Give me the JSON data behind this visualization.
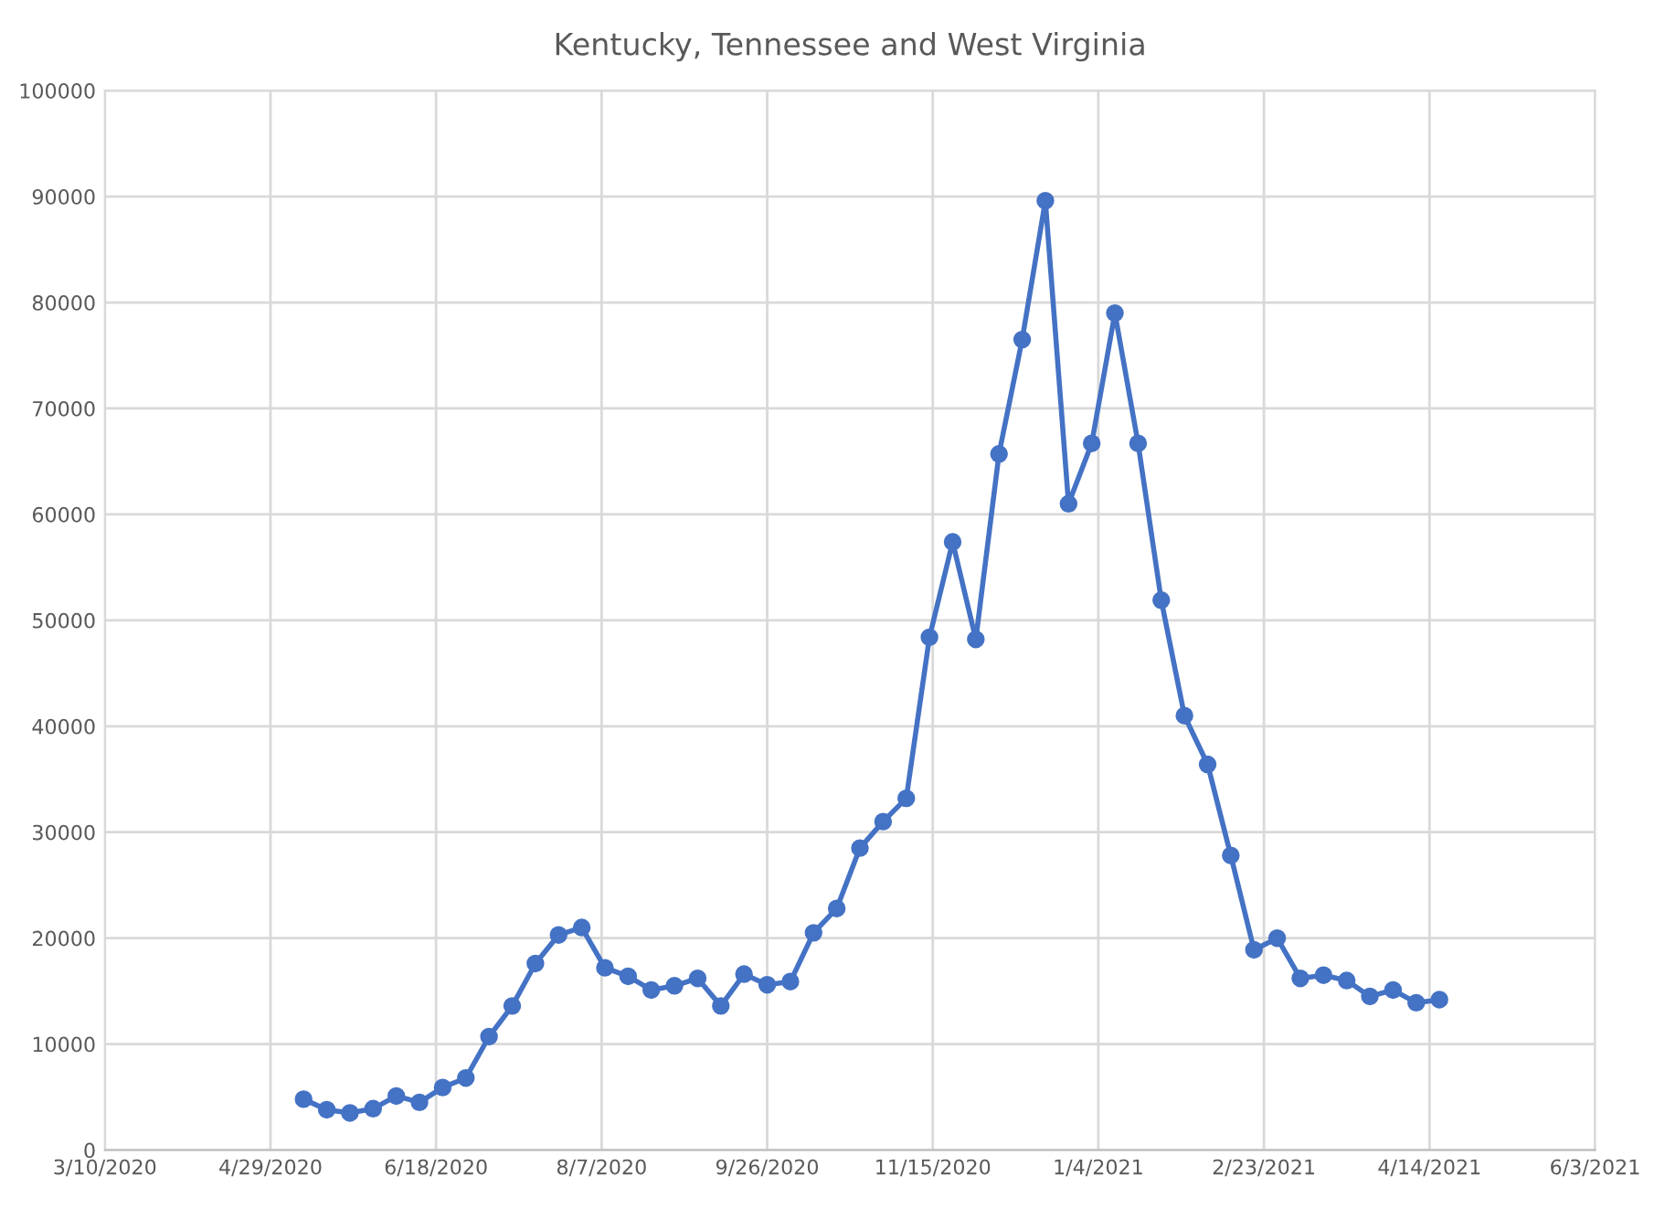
{
  "chart_data": {
    "type": "line",
    "title": "Kentucky, Tennessee and West Virginia",
    "x": [
      "2020-05-09",
      "2020-05-16",
      "2020-05-23",
      "2020-05-30",
      "2020-06-06",
      "2020-06-13",
      "2020-06-20",
      "2020-06-27",
      "2020-07-04",
      "2020-07-11",
      "2020-07-18",
      "2020-07-25",
      "2020-08-01",
      "2020-08-08",
      "2020-08-15",
      "2020-08-22",
      "2020-08-29",
      "2020-09-05",
      "2020-09-12",
      "2020-09-19",
      "2020-09-26",
      "2020-10-03",
      "2020-10-10",
      "2020-10-17",
      "2020-10-24",
      "2020-10-31",
      "2020-11-07",
      "2020-11-14",
      "2020-11-21",
      "2020-11-28",
      "2020-12-05",
      "2020-12-12",
      "2020-12-19",
      "2020-12-26",
      "2021-01-02",
      "2021-01-09",
      "2021-01-16",
      "2021-01-23",
      "2021-01-30",
      "2021-02-06",
      "2021-02-13",
      "2021-02-20",
      "2021-02-27",
      "2021-03-06",
      "2021-03-13",
      "2021-03-20",
      "2021-03-27",
      "2021-04-03",
      "2021-04-10",
      "2021-04-17"
    ],
    "series": [
      {
        "color": "#4472c4",
        "values": [
          4800,
          3800,
          3500,
          3900,
          5100,
          4500,
          5900,
          6800,
          10700,
          13600,
          17600,
          20300,
          21000,
          17200,
          16400,
          15100,
          15500,
          16200,
          13600,
          16600,
          15600,
          15900,
          20500,
          22800,
          28500,
          31000,
          33200,
          48400,
          57400,
          48200,
          65700,
          76500,
          89600,
          61000,
          66700,
          79000,
          66700,
          51900,
          41000,
          36400,
          27800,
          18900,
          20000,
          16200,
          16500,
          16000,
          14500,
          15100,
          13900,
          14200
        ]
      }
    ],
    "xlim": [
      "2020-03-10",
      "2021-06-03"
    ],
    "xticks": [
      {
        "value": "2020-03-10",
        "label": "3/10/2020"
      },
      {
        "value": "2020-04-29",
        "label": "4/29/2020"
      },
      {
        "value": "2020-06-18",
        "label": "6/18/2020"
      },
      {
        "value": "2020-08-07",
        "label": "8/7/2020"
      },
      {
        "value": "2020-09-26",
        "label": "9/26/2020"
      },
      {
        "value": "2020-11-15",
        "label": "11/15/2020"
      },
      {
        "value": "2021-01-04",
        "label": "1/4/2021"
      },
      {
        "value": "2021-02-23",
        "label": "2/23/2021"
      },
      {
        "value": "2021-04-14",
        "label": "4/14/2021"
      },
      {
        "value": "2021-06-03",
        "label": "6/3/2021"
      }
    ],
    "ylim": [
      0,
      100000
    ],
    "yticks": [
      0,
      10000,
      20000,
      30000,
      40000,
      50000,
      60000,
      70000,
      80000,
      90000,
      100000
    ],
    "grid": true,
    "marker": "circle",
    "line_style": "solid"
  }
}
